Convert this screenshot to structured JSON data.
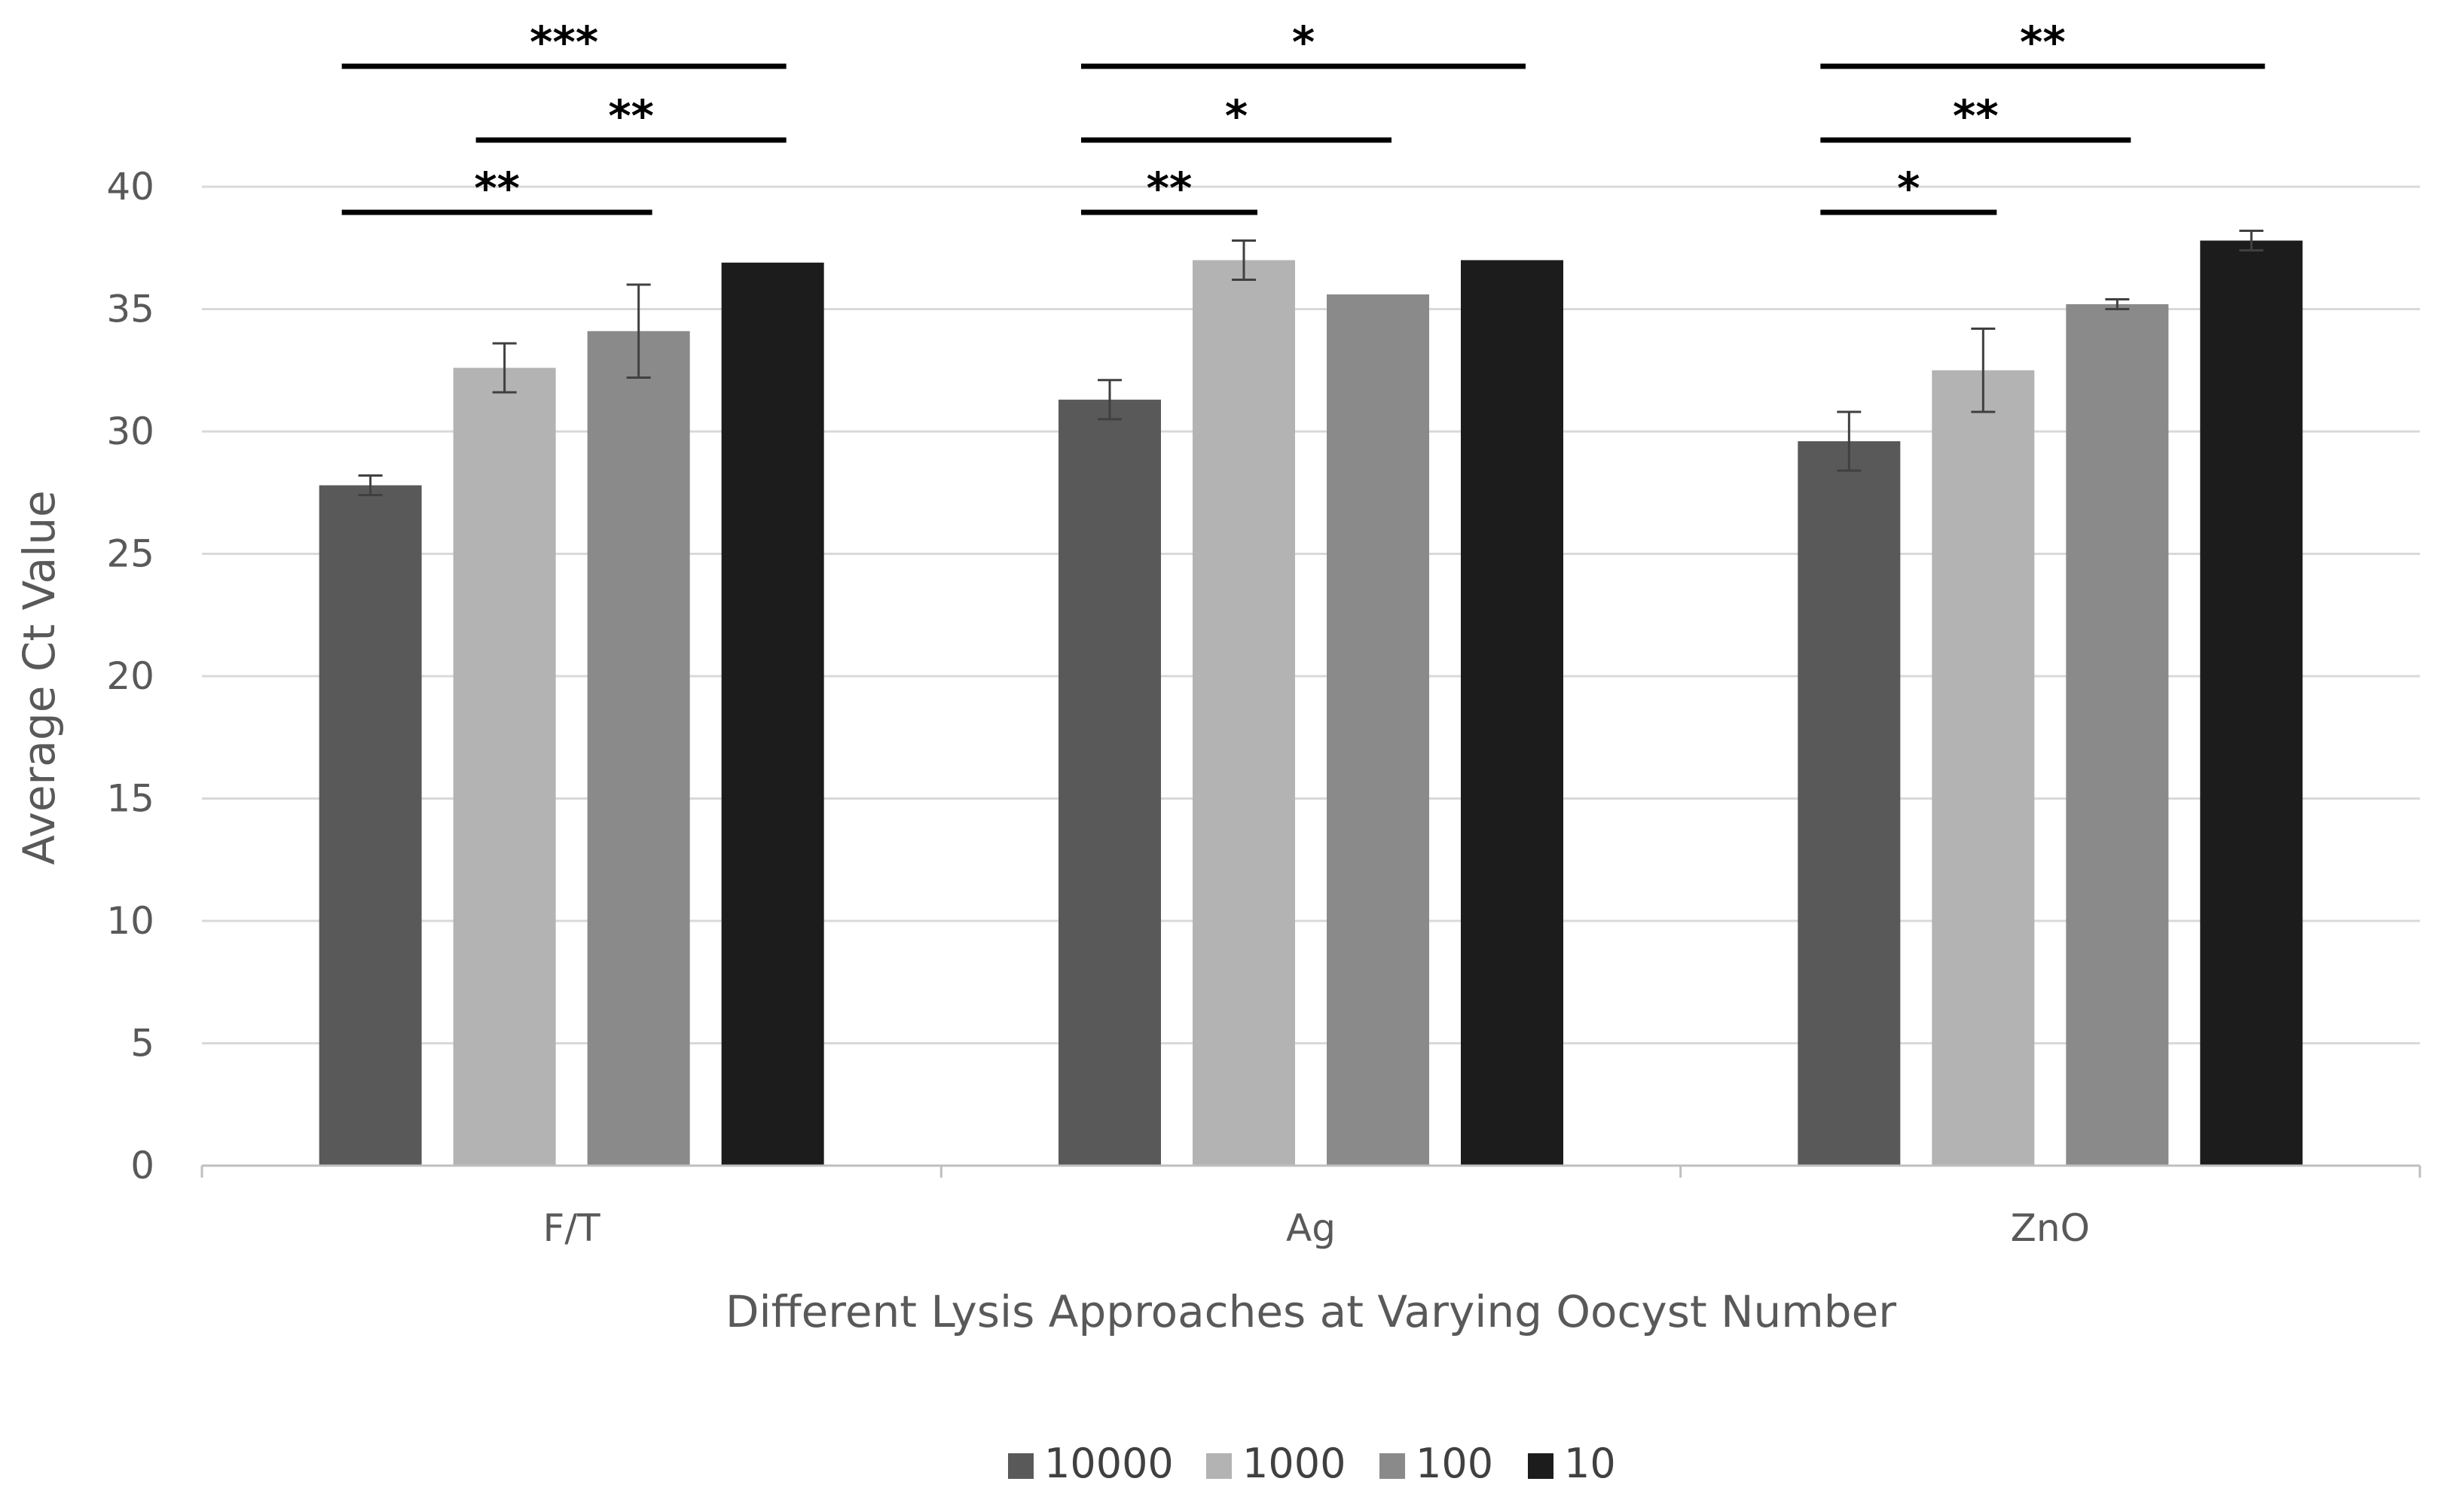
{
  "chart_data": {
    "type": "bar",
    "title": "",
    "xlabel": "Different Lysis Approaches at Varying Oocyst Number",
    "ylabel": "Average Ct Value",
    "ylim": [
      0,
      40
    ],
    "yticks": [
      0,
      5,
      10,
      15,
      20,
      25,
      30,
      35,
      40
    ],
    "grid": true,
    "legend_position": "bottom",
    "categories": [
      "F/T",
      "Ag",
      "ZnO"
    ],
    "series": [
      {
        "name": "10000",
        "color": "#595959",
        "values": [
          27.8,
          31.3,
          29.6
        ],
        "errors": [
          0.4,
          0.8,
          1.2
        ]
      },
      {
        "name": "1000",
        "color": "#b3b3b3",
        "values": [
          32.6,
          37.0,
          32.5
        ],
        "errors": [
          1.0,
          0.8,
          1.7
        ]
      },
      {
        "name": "100",
        "color": "#8a8a8a",
        "values": [
          34.1,
          35.6,
          35.2
        ],
        "errors": [
          1.9,
          0,
          0.2
        ]
      },
      {
        "name": "10",
        "color": "#1c1c1c",
        "values": [
          36.9,
          37.0,
          37.8
        ],
        "errors": [
          0,
          0,
          0.4
        ]
      }
    ],
    "significance": [
      {
        "category": 0,
        "from": 0,
        "to": 3,
        "label": "***"
      },
      {
        "category": 0,
        "from": 1,
        "to": 3,
        "label": "**"
      },
      {
        "category": 0,
        "from": 0,
        "to": 2,
        "label": "**"
      },
      {
        "category": 1,
        "from": 0,
        "to": 3,
        "label": "*"
      },
      {
        "category": 1,
        "from": 0,
        "to": 2,
        "label": "*"
      },
      {
        "category": 1,
        "from": 0,
        "to": 1,
        "label": "**"
      },
      {
        "category": 2,
        "from": 0,
        "to": 3,
        "label": "**"
      },
      {
        "category": 2,
        "from": 0,
        "to": 2,
        "label": "**"
      },
      {
        "category": 2,
        "from": 0,
        "to": 1,
        "label": "*"
      }
    ]
  }
}
